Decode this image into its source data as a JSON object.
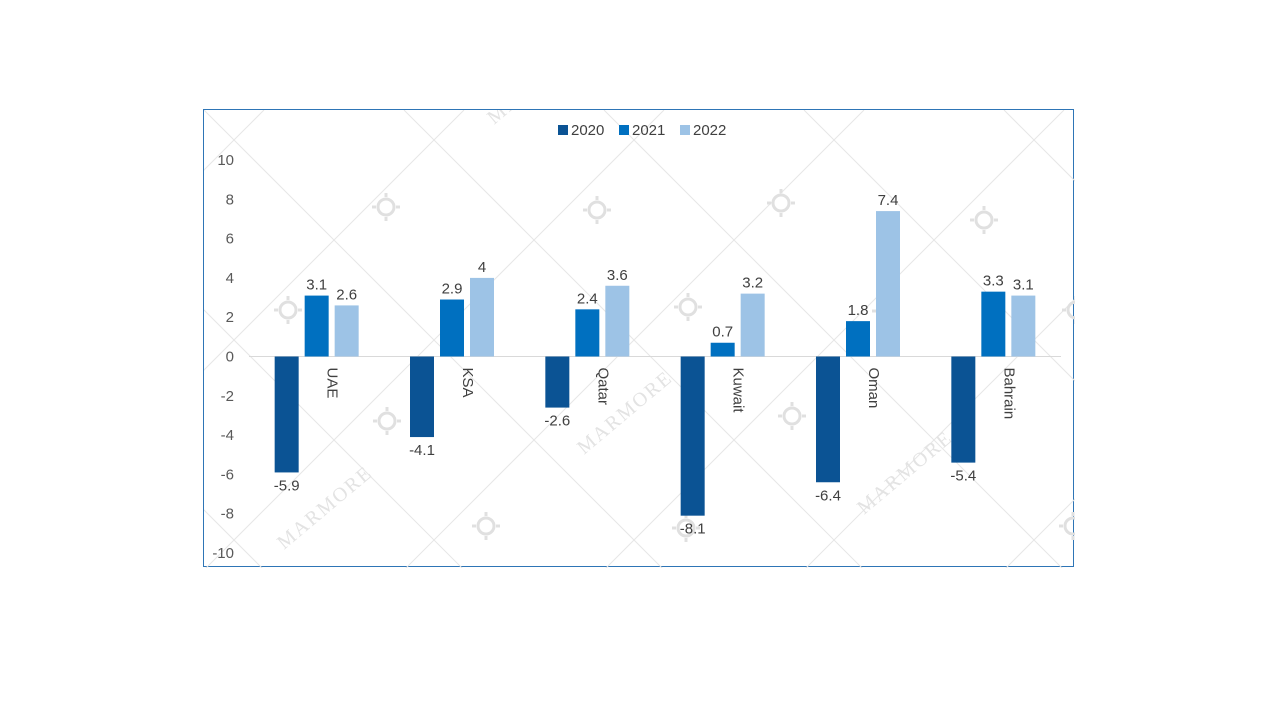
{
  "chart_data": {
    "type": "bar",
    "title": "",
    "xlabel": "",
    "ylabel": "",
    "categories": [
      "UAE",
      "KSA",
      "Qatar",
      "Kuwait",
      "Oman",
      "Bahrain"
    ],
    "series": [
      {
        "name": "2020",
        "color": "#0b5394",
        "values": [
          -5.9,
          -4.1,
          -2.6,
          -8.1,
          -6.4,
          -5.4
        ]
      },
      {
        "name": "2021",
        "color": "#0070c0",
        "values": [
          3.1,
          2.9,
          2.4,
          0.7,
          1.8,
          3.3
        ]
      },
      {
        "name": "2022",
        "color": "#9dc3e6",
        "values": [
          2.6,
          4,
          3.6,
          3.2,
          7.4,
          3.1
        ]
      }
    ],
    "ylim": [
      -10,
      10
    ],
    "yticks": [
      10,
      8,
      6,
      4,
      2,
      0,
      -2,
      -4,
      -6,
      -8,
      -10
    ],
    "legend_position": "top-center",
    "grid": false
  },
  "watermark": {
    "text": "MARMORE"
  }
}
